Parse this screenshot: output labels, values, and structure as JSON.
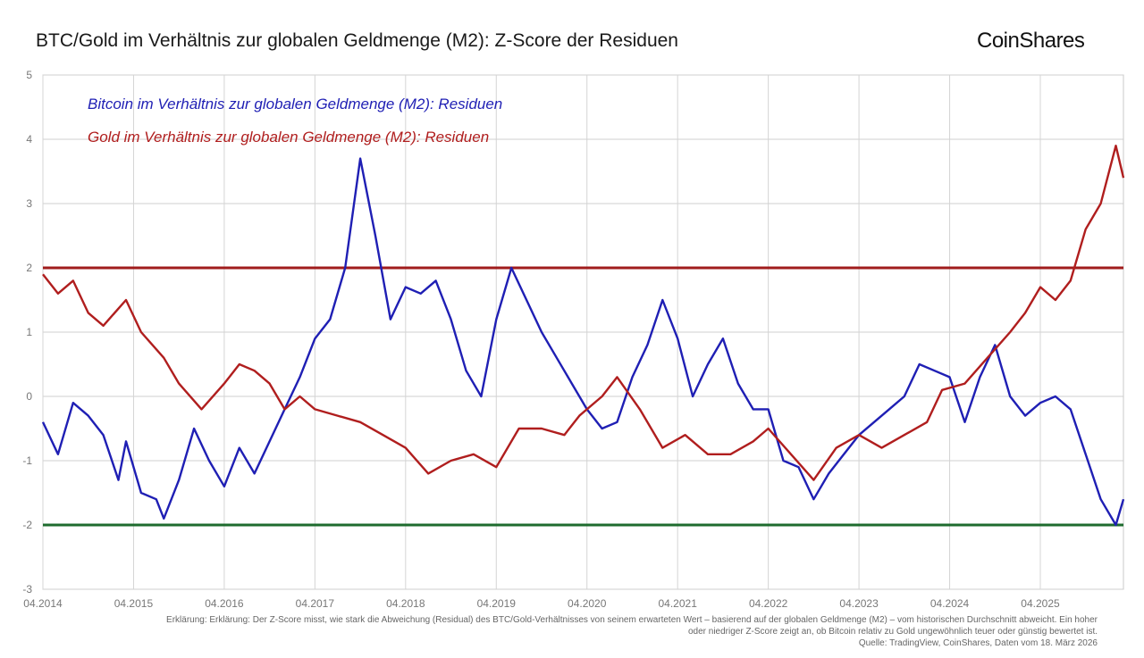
{
  "title": "BTC/Gold im Verhältnis zur globalen Geldmenge (M2): Z-Score der Residuen",
  "brand": "CoinShares",
  "footer": {
    "line1": "Erklärung: Erklärung: Der Z-Score misst, wie stark die Abweichung (Residual) des BTC/Gold-Verhältnisses von seinem erwarteten Wert – basierend auf der globalen Geldmenge (M2) – vom historischen Durchschnitt abweicht. Ein hoher",
    "line2": "oder niedriger Z-Score zeigt an, ob Bitcoin relativ zu Gold ungewöhnlich teuer oder günstig bewertet ist.",
    "line3": "Quelle: TradingView, CoinShares, Daten vom 18. März 2026"
  },
  "chart_data": {
    "type": "line",
    "title": "BTC/Gold im Verhältnis zur globalen Geldmenge (M2): Z-Score der Residuen",
    "xlabel": "",
    "ylabel": "",
    "x_ticks": [
      "04.2014",
      "04.2015",
      "04.2016",
      "04.2017",
      "04.2018",
      "04.2019",
      "04.2020",
      "04.2021",
      "04.2022",
      "04.2023",
      "04.2024",
      "04.2025"
    ],
    "xlim": [
      "2014-04",
      "2026-03"
    ],
    "ylim": [
      -3,
      5
    ],
    "y_ticks": [
      -3,
      -2,
      -1,
      0,
      1,
      2,
      3,
      4,
      5
    ],
    "grid": true,
    "legend_position": "top-left",
    "reference_lines": [
      {
        "y": 2,
        "color": "#a01c1c"
      },
      {
        "y": -2,
        "color": "#1e6b2e"
      }
    ],
    "series": [
      {
        "name": "Bitcoin im Verhältnis zur globalen Geldmenge (M2): Residuen",
        "color": "#1f1fb4",
        "points": [
          [
            "2014-04",
            -0.4
          ],
          [
            "2014-06",
            -0.9
          ],
          [
            "2014-08",
            -0.1
          ],
          [
            "2014-10",
            -0.3
          ],
          [
            "2014-12",
            -0.6
          ],
          [
            "2015-02",
            -1.3
          ],
          [
            "2015-03",
            -0.7
          ],
          [
            "2015-05",
            -1.5
          ],
          [
            "2015-07",
            -1.6
          ],
          [
            "2015-08",
            -1.9
          ],
          [
            "2015-10",
            -1.3
          ],
          [
            "2015-12",
            -0.5
          ],
          [
            "2016-02",
            -1.0
          ],
          [
            "2016-04",
            -1.4
          ],
          [
            "2016-06",
            -0.8
          ],
          [
            "2016-08",
            -1.2
          ],
          [
            "2016-10",
            -0.7
          ],
          [
            "2016-12",
            -0.2
          ],
          [
            "2017-02",
            0.3
          ],
          [
            "2017-04",
            0.9
          ],
          [
            "2017-06",
            1.2
          ],
          [
            "2017-08",
            2.0
          ],
          [
            "2017-10",
            3.7
          ],
          [
            "2017-12",
            2.5
          ],
          [
            "2018-02",
            1.2
          ],
          [
            "2018-04",
            1.7
          ],
          [
            "2018-06",
            1.6
          ],
          [
            "2018-08",
            1.8
          ],
          [
            "2018-10",
            1.2
          ],
          [
            "2018-12",
            0.4
          ],
          [
            "2019-02",
            0.0
          ],
          [
            "2019-04",
            1.2
          ],
          [
            "2019-06",
            2.0
          ],
          [
            "2019-08",
            1.5
          ],
          [
            "2019-10",
            1.0
          ],
          [
            "2019-12",
            0.6
          ],
          [
            "2020-02",
            0.2
          ],
          [
            "2020-04",
            -0.2
          ],
          [
            "2020-06",
            -0.5
          ],
          [
            "2020-08",
            -0.4
          ],
          [
            "2020-10",
            0.3
          ],
          [
            "2020-12",
            0.8
          ],
          [
            "2021-02",
            1.5
          ],
          [
            "2021-04",
            0.9
          ],
          [
            "2021-06",
            0.0
          ],
          [
            "2021-08",
            0.5
          ],
          [
            "2021-10",
            0.9
          ],
          [
            "2021-12",
            0.2
          ],
          [
            "2022-02",
            -0.2
          ],
          [
            "2022-04",
            -0.2
          ],
          [
            "2022-06",
            -1.0
          ],
          [
            "2022-08",
            -1.1
          ],
          [
            "2022-10",
            -1.6
          ],
          [
            "2022-12",
            -1.2
          ],
          [
            "2023-02",
            -0.9
          ],
          [
            "2023-04",
            -0.6
          ],
          [
            "2023-06",
            -0.4
          ],
          [
            "2023-08",
            -0.2
          ],
          [
            "2023-10",
            0.0
          ],
          [
            "2023-12",
            0.5
          ],
          [
            "2024-02",
            0.4
          ],
          [
            "2024-04",
            0.3
          ],
          [
            "2024-06",
            -0.4
          ],
          [
            "2024-08",
            0.3
          ],
          [
            "2024-10",
            0.8
          ],
          [
            "2024-12",
            0.0
          ],
          [
            "2025-02",
            -0.3
          ],
          [
            "2025-04",
            -0.1
          ],
          [
            "2025-06",
            0.0
          ],
          [
            "2025-08",
            -0.2
          ],
          [
            "2025-10",
            -0.9
          ],
          [
            "2025-12",
            -1.6
          ],
          [
            "2026-02",
            -2.0
          ],
          [
            "2026-03",
            -1.6
          ]
        ]
      },
      {
        "name": "Gold im Verhältnis zur globalen Geldmenge (M2): Residuen",
        "color": "#b01e1e",
        "points": [
          [
            "2014-04",
            1.9
          ],
          [
            "2014-06",
            1.6
          ],
          [
            "2014-08",
            1.8
          ],
          [
            "2014-10",
            1.3
          ],
          [
            "2014-12",
            1.1
          ],
          [
            "2015-03",
            1.5
          ],
          [
            "2015-05",
            1.0
          ],
          [
            "2015-08",
            0.6
          ],
          [
            "2015-10",
            0.2
          ],
          [
            "2016-01",
            -0.2
          ],
          [
            "2016-04",
            0.2
          ],
          [
            "2016-06",
            0.5
          ],
          [
            "2016-08",
            0.4
          ],
          [
            "2016-10",
            0.2
          ],
          [
            "2016-12",
            -0.2
          ],
          [
            "2017-02",
            0.0
          ],
          [
            "2017-04",
            -0.2
          ],
          [
            "2017-07",
            -0.3
          ],
          [
            "2017-10",
            -0.4
          ],
          [
            "2018-01",
            -0.6
          ],
          [
            "2018-04",
            -0.8
          ],
          [
            "2018-07",
            -1.2
          ],
          [
            "2018-10",
            -1.0
          ],
          [
            "2019-01",
            -0.9
          ],
          [
            "2019-04",
            -1.1
          ],
          [
            "2019-07",
            -0.5
          ],
          [
            "2019-10",
            -0.5
          ],
          [
            "2020-01",
            -0.6
          ],
          [
            "2020-03",
            -0.3
          ],
          [
            "2020-06",
            0.0
          ],
          [
            "2020-08",
            0.3
          ],
          [
            "2020-11",
            -0.2
          ],
          [
            "2021-02",
            -0.8
          ],
          [
            "2021-05",
            -0.6
          ],
          [
            "2021-08",
            -0.9
          ],
          [
            "2021-11",
            -0.9
          ],
          [
            "2022-02",
            -0.7
          ],
          [
            "2022-04",
            -0.5
          ],
          [
            "2022-07",
            -0.9
          ],
          [
            "2022-10",
            -1.3
          ],
          [
            "2023-01",
            -0.8
          ],
          [
            "2023-04",
            -0.6
          ],
          [
            "2023-07",
            -0.8
          ],
          [
            "2023-10",
            -0.6
          ],
          [
            "2024-01",
            -0.4
          ],
          [
            "2024-03",
            0.1
          ],
          [
            "2024-06",
            0.2
          ],
          [
            "2024-09",
            0.6
          ],
          [
            "2024-12",
            1.0
          ],
          [
            "2025-02",
            1.3
          ],
          [
            "2025-04",
            1.7
          ],
          [
            "2025-06",
            1.5
          ],
          [
            "2025-08",
            1.8
          ],
          [
            "2025-10",
            2.6
          ],
          [
            "2025-12",
            3.0
          ],
          [
            "2026-02",
            3.9
          ],
          [
            "2026-03",
            3.4
          ]
        ]
      }
    ]
  }
}
